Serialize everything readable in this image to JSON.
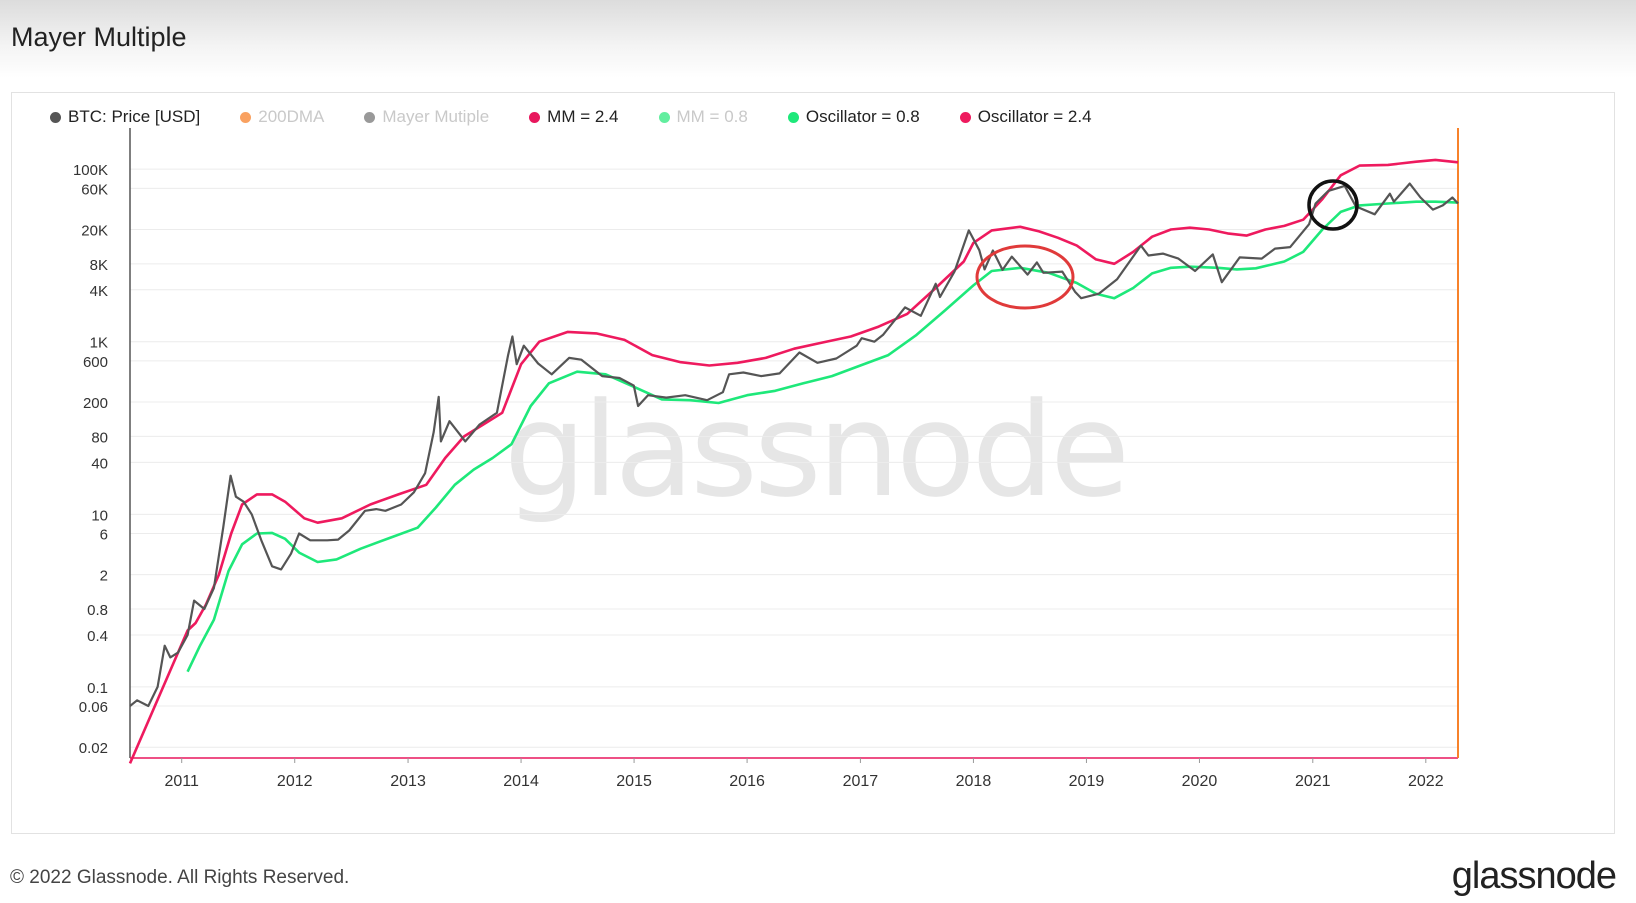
{
  "header": {
    "title": "Mayer Multiple"
  },
  "legend": [
    {
      "label": "BTC: Price [USD]",
      "color": "#555555",
      "dim": false
    },
    {
      "label": "200DMA",
      "color": "#f7822b",
      "dim": true
    },
    {
      "label": "Mayer Mutiple",
      "color": "#777777",
      "dim": true
    },
    {
      "label": "MM = 2.4",
      "color": "#e8175d",
      "dim": false
    },
    {
      "label": "MM = 0.8",
      "color": "#2ee87f",
      "dim": true
    },
    {
      "label": "Oscillator = 0.8",
      "color": "#1ee87a",
      "dim": false
    },
    {
      "label": "Oscillator = 2.4",
      "color": "#ee1a5e",
      "dim": false
    }
  ],
  "watermark": "glassnode",
  "footer": {
    "copyright": "© 2022 Glassnode. All Rights Reserved.",
    "logo": "glassnode"
  },
  "chart_data": {
    "type": "line",
    "x_scale": "time",
    "y_scale": "log",
    "ylim": [
      0.015,
      300000
    ],
    "xlim": [
      "2010-07-18",
      "2022-04-15"
    ],
    "y_ticks": [
      {
        "value": 100000,
        "label": "100K"
      },
      {
        "value": 60000,
        "label": "60K"
      },
      {
        "value": 20000,
        "label": "20K"
      },
      {
        "value": 8000,
        "label": "8K"
      },
      {
        "value": 4000,
        "label": "4K"
      },
      {
        "value": 1000,
        "label": "1K"
      },
      {
        "value": 600,
        "label": "600"
      },
      {
        "value": 200,
        "label": "200"
      },
      {
        "value": 80,
        "label": "80"
      },
      {
        "value": 40,
        "label": "40"
      },
      {
        "value": 10,
        "label": "10"
      },
      {
        "value": 6,
        "label": "6"
      },
      {
        "value": 2,
        "label": "2"
      },
      {
        "value": 0.8,
        "label": "0.8"
      },
      {
        "value": 0.4,
        "label": "0.4"
      },
      {
        "value": 0.1,
        "label": "0.1"
      },
      {
        "value": 0.06,
        "label": "0.06"
      },
      {
        "value": 0.02,
        "label": "0.02"
      }
    ],
    "x_ticks": [
      {
        "date": "2011-01-01",
        "label": "2011"
      },
      {
        "date": "2012-01-01",
        "label": "2012"
      },
      {
        "date": "2013-01-01",
        "label": "2013"
      },
      {
        "date": "2014-01-01",
        "label": "2014"
      },
      {
        "date": "2015-01-01",
        "label": "2015"
      },
      {
        "date": "2016-01-01",
        "label": "2016"
      },
      {
        "date": "2017-01-01",
        "label": "2017"
      },
      {
        "date": "2018-01-01",
        "label": "2018"
      },
      {
        "date": "2019-01-01",
        "label": "2019"
      },
      {
        "date": "2020-01-01",
        "label": "2020"
      },
      {
        "date": "2021-01-01",
        "label": "2021"
      },
      {
        "date": "2022-01-01",
        "label": "2022"
      }
    ],
    "grid": true,
    "series": [
      {
        "name": "BTC: Price [USD]",
        "color": "#555555",
        "points": [
          [
            "2010-07-18",
            0.06
          ],
          [
            "2010-08-10",
            0.07
          ],
          [
            "2010-09-15",
            0.06
          ],
          [
            "2010-10-15",
            0.1
          ],
          [
            "2010-11-07",
            0.3
          ],
          [
            "2010-11-25",
            0.22
          ],
          [
            "2010-12-20",
            0.25
          ],
          [
            "2011-01-20",
            0.4
          ],
          [
            "2011-02-10",
            1.0
          ],
          [
            "2011-03-15",
            0.8
          ],
          [
            "2011-04-15",
            1.4
          ],
          [
            "2011-05-15",
            7
          ],
          [
            "2011-06-08",
            28
          ],
          [
            "2011-06-25",
            16
          ],
          [
            "2011-07-20",
            14
          ],
          [
            "2011-08-15",
            10
          ],
          [
            "2011-09-15",
            5
          ],
          [
            "2011-10-20",
            2.5
          ],
          [
            "2011-11-18",
            2.3
          ],
          [
            "2011-12-20",
            3.5
          ],
          [
            "2012-01-15",
            6
          ],
          [
            "2012-02-20",
            5
          ],
          [
            "2012-04-15",
            5
          ],
          [
            "2012-05-20",
            5.1
          ],
          [
            "2012-06-25",
            6.5
          ],
          [
            "2012-08-15",
            11
          ],
          [
            "2012-09-20",
            11.5
          ],
          [
            "2012-10-20",
            11
          ],
          [
            "2012-12-10",
            13
          ],
          [
            "2013-01-20",
            18
          ],
          [
            "2013-02-25",
            30
          ],
          [
            "2013-03-25",
            90
          ],
          [
            "2013-04-10",
            230
          ],
          [
            "2013-04-17",
            70
          ],
          [
            "2013-05-15",
            120
          ],
          [
            "2013-07-05",
            70
          ],
          [
            "2013-08-20",
            110
          ],
          [
            "2013-10-15",
            150
          ],
          [
            "2013-11-20",
            700
          ],
          [
            "2013-12-04",
            1150
          ],
          [
            "2013-12-18",
            550
          ],
          [
            "2014-01-10",
            900
          ],
          [
            "2014-02-25",
            560
          ],
          [
            "2014-04-10",
            420
          ],
          [
            "2014-06-05",
            650
          ],
          [
            "2014-07-15",
            620
          ],
          [
            "2014-09-20",
            400
          ],
          [
            "2014-11-15",
            380
          ],
          [
            "2014-12-31",
            310
          ],
          [
            "2015-01-14",
            180
          ],
          [
            "2015-02-15",
            240
          ],
          [
            "2015-04-15",
            225
          ],
          [
            "2015-06-15",
            240
          ],
          [
            "2015-08-25",
            210
          ],
          [
            "2015-10-15",
            260
          ],
          [
            "2015-11-04",
            420
          ],
          [
            "2015-12-20",
            440
          ],
          [
            "2016-02-15",
            400
          ],
          [
            "2016-04-15",
            430
          ],
          [
            "2016-06-18",
            750
          ],
          [
            "2016-08-15",
            570
          ],
          [
            "2016-10-15",
            640
          ],
          [
            "2016-12-20",
            900
          ],
          [
            "2017-01-05",
            1100
          ],
          [
            "2017-02-15",
            1000
          ],
          [
            "2017-03-15",
            1200
          ],
          [
            "2017-05-25",
            2500
          ],
          [
            "2017-07-15",
            2000
          ],
          [
            "2017-09-01",
            4700
          ],
          [
            "2017-09-15",
            3300
          ],
          [
            "2017-11-01",
            6500
          ],
          [
            "2017-12-17",
            19500
          ],
          [
            "2018-01-20",
            11500
          ],
          [
            "2018-02-06",
            6900
          ],
          [
            "2018-03-05",
            11400
          ],
          [
            "2018-04-05",
            6800
          ],
          [
            "2018-05-05",
            9700
          ],
          [
            "2018-06-25",
            6000
          ],
          [
            "2018-07-25",
            8300
          ],
          [
            "2018-08-15",
            6300
          ],
          [
            "2018-10-15",
            6500
          ],
          [
            "2018-11-25",
            3800
          ],
          [
            "2018-12-15",
            3200
          ],
          [
            "2019-02-10",
            3600
          ],
          [
            "2019-04-10",
            5300
          ],
          [
            "2019-06-26",
            13000
          ],
          [
            "2019-07-20",
            10000
          ],
          [
            "2019-09-05",
            10500
          ],
          [
            "2019-10-25",
            9200
          ],
          [
            "2019-12-18",
            6600
          ],
          [
            "2020-02-13",
            10300
          ],
          [
            "2020-03-13",
            4900
          ],
          [
            "2020-05-10",
            9500
          ],
          [
            "2020-07-20",
            9200
          ],
          [
            "2020-09-01",
            12000
          ],
          [
            "2020-10-20",
            12500
          ],
          [
            "2020-12-20",
            23000
          ],
          [
            "2021-01-10",
            40000
          ],
          [
            "2021-02-20",
            56000
          ],
          [
            "2021-04-14",
            64000
          ],
          [
            "2021-05-20",
            37000
          ],
          [
            "2021-07-20",
            30000
          ],
          [
            "2021-09-07",
            52000
          ],
          [
            "2021-09-20",
            42000
          ],
          [
            "2021-11-10",
            68000
          ],
          [
            "2021-12-15",
            47000
          ],
          [
            "2022-01-24",
            34000
          ],
          [
            "2022-02-25",
            38000
          ],
          [
            "2022-03-28",
            47000
          ],
          [
            "2022-04-15",
            40000
          ]
        ]
      },
      {
        "name": "Oscillator = 2.4",
        "color": "#ee1a5e",
        "points": [
          [
            "2010-07-18",
            0.013
          ],
          [
            "2011-01-20",
            0.45
          ],
          [
            "2011-02-15",
            0.55
          ],
          [
            "2011-03-20",
            0.9
          ],
          [
            "2011-05-01",
            2
          ],
          [
            "2011-06-10",
            6
          ],
          [
            "2011-07-15",
            13
          ],
          [
            "2011-09-01",
            17
          ],
          [
            "2011-10-20",
            17
          ],
          [
            "2011-12-01",
            14
          ],
          [
            "2012-02-01",
            9
          ],
          [
            "2012-03-15",
            8
          ],
          [
            "2012-06-01",
            9
          ],
          [
            "2012-09-01",
            13
          ],
          [
            "2012-12-01",
            17
          ],
          [
            "2013-03-01",
            22
          ],
          [
            "2013-05-01",
            45
          ],
          [
            "2013-07-01",
            80
          ],
          [
            "2013-09-01",
            110
          ],
          [
            "2013-11-01",
            150
          ],
          [
            "2014-01-01",
            550
          ],
          [
            "2014-03-01",
            1000
          ],
          [
            "2014-06-01",
            1300
          ],
          [
            "2014-09-01",
            1250
          ],
          [
            "2014-12-01",
            1050
          ],
          [
            "2015-03-01",
            700
          ],
          [
            "2015-06-01",
            580
          ],
          [
            "2015-09-01",
            530
          ],
          [
            "2015-12-01",
            570
          ],
          [
            "2016-03-01",
            650
          ],
          [
            "2016-06-01",
            830
          ],
          [
            "2016-09-01",
            980
          ],
          [
            "2016-12-01",
            1150
          ],
          [
            "2017-03-01",
            1500
          ],
          [
            "2017-06-01",
            2100
          ],
          [
            "2017-09-01",
            4200
          ],
          [
            "2017-12-01",
            8500
          ],
          [
            "2018-01-01",
            14000
          ],
          [
            "2018-03-01",
            19500
          ],
          [
            "2018-06-01",
            21500
          ],
          [
            "2018-08-01",
            19000
          ],
          [
            "2018-10-01",
            16000
          ],
          [
            "2018-12-01",
            13000
          ],
          [
            "2019-02-01",
            9000
          ],
          [
            "2019-04-01",
            8000
          ],
          [
            "2019-06-01",
            11000
          ],
          [
            "2019-08-01",
            16500
          ],
          [
            "2019-10-01",
            20000
          ],
          [
            "2019-12-01",
            21000
          ],
          [
            "2020-02-01",
            20000
          ],
          [
            "2020-04-01",
            18000
          ],
          [
            "2020-06-01",
            17000
          ],
          [
            "2020-08-01",
            20000
          ],
          [
            "2020-10-01",
            22000
          ],
          [
            "2020-12-01",
            26000
          ],
          [
            "2021-02-01",
            45000
          ],
          [
            "2021-04-01",
            85000
          ],
          [
            "2021-06-01",
            110000
          ],
          [
            "2021-09-01",
            112000
          ],
          [
            "2021-12-01",
            122000
          ],
          [
            "2022-02-01",
            128000
          ],
          [
            "2022-04-15",
            120000
          ]
        ]
      },
      {
        "name": "Oscillator = 0.8",
        "color": "#1ee87a",
        "points": [
          [
            "2011-01-20",
            0.15
          ],
          [
            "2011-03-01",
            0.3
          ],
          [
            "2011-04-15",
            0.6
          ],
          [
            "2011-06-01",
            2.2
          ],
          [
            "2011-07-15",
            4.5
          ],
          [
            "2011-09-01",
            6
          ],
          [
            "2011-10-20",
            6.1
          ],
          [
            "2011-12-01",
            5.2
          ],
          [
            "2012-01-15",
            3.6
          ],
          [
            "2012-03-15",
            2.8
          ],
          [
            "2012-05-15",
            3
          ],
          [
            "2012-08-01",
            4
          ],
          [
            "2012-11-01",
            5.3
          ],
          [
            "2013-02-01",
            7
          ],
          [
            "2013-04-01",
            12
          ],
          [
            "2013-06-01",
            22
          ],
          [
            "2013-08-01",
            33
          ],
          [
            "2013-10-01",
            45
          ],
          [
            "2013-12-01",
            65
          ],
          [
            "2014-02-01",
            180
          ],
          [
            "2014-04-01",
            330
          ],
          [
            "2014-07-01",
            450
          ],
          [
            "2014-10-01",
            420
          ],
          [
            "2015-01-01",
            300
          ],
          [
            "2015-04-01",
            215
          ],
          [
            "2015-07-01",
            210
          ],
          [
            "2015-10-01",
            195
          ],
          [
            "2016-01-01",
            240
          ],
          [
            "2016-04-01",
            270
          ],
          [
            "2016-07-01",
            330
          ],
          [
            "2016-10-01",
            400
          ],
          [
            "2017-01-01",
            530
          ],
          [
            "2017-04-01",
            700
          ],
          [
            "2017-07-01",
            1200
          ],
          [
            "2017-10-01",
            2300
          ],
          [
            "2018-01-01",
            4500
          ],
          [
            "2018-03-01",
            6600
          ],
          [
            "2018-06-01",
            7200
          ],
          [
            "2018-09-01",
            6300
          ],
          [
            "2018-12-01",
            4800
          ],
          [
            "2019-02-01",
            3600
          ],
          [
            "2019-04-01",
            3200
          ],
          [
            "2019-06-01",
            4200
          ],
          [
            "2019-08-01",
            6200
          ],
          [
            "2019-10-01",
            7200
          ],
          [
            "2019-12-01",
            7400
          ],
          [
            "2020-03-01",
            7200
          ],
          [
            "2020-05-01",
            6900
          ],
          [
            "2020-07-01",
            7100
          ],
          [
            "2020-10-01",
            8500
          ],
          [
            "2020-12-01",
            11000
          ],
          [
            "2021-02-01",
            20000
          ],
          [
            "2021-04-01",
            32000
          ],
          [
            "2021-06-01",
            38000
          ],
          [
            "2021-09-01",
            40000
          ],
          [
            "2021-12-01",
            42000
          ],
          [
            "2022-02-01",
            42000
          ],
          [
            "2022-04-15",
            41000
          ]
        ]
      }
    ]
  }
}
